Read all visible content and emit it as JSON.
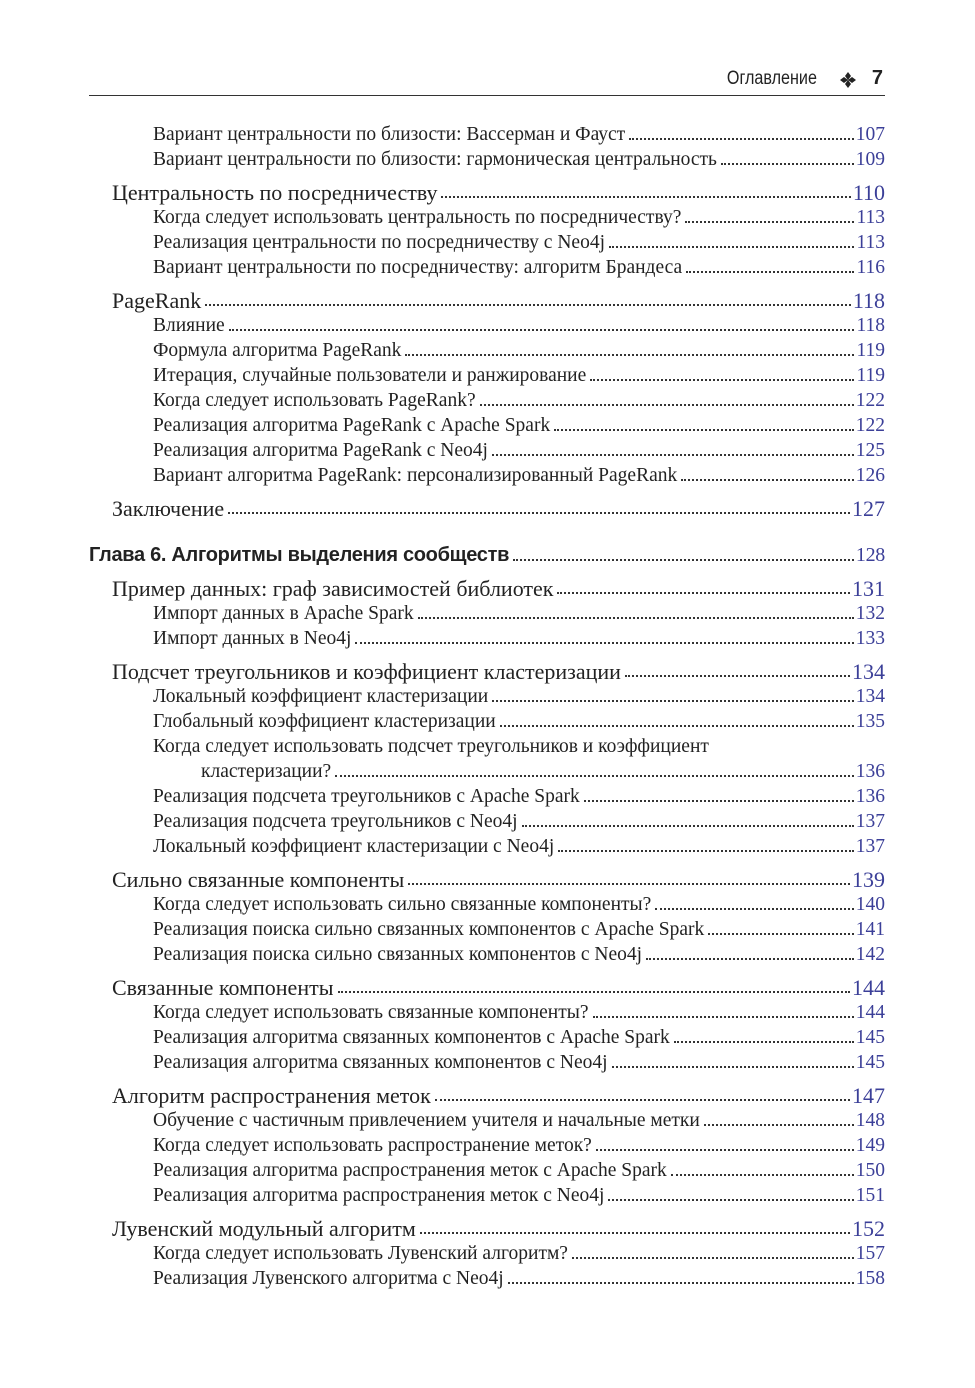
{
  "header": {
    "title": "Оглавление",
    "page_number": 7
  },
  "entries": [
    {
      "level": "sub",
      "text": "Вариант центральности по близости: Вассерман и Фауст",
      "page": 107
    },
    {
      "level": "sub",
      "text": "Вариант центральности по близости: гармоническая центральность",
      "page": 109
    },
    {
      "level": "section",
      "text": "Центральность по посредничеству",
      "page": 110
    },
    {
      "level": "sub",
      "text": "Когда следует использовать центральность по посредничеству?",
      "page": 113
    },
    {
      "level": "sub",
      "text": "Реализация центральности по посредничеству с Neo4j",
      "page": 113
    },
    {
      "level": "sub",
      "text": "Вариант центральности по посредничеству: алгоритм Брандеса",
      "page": 116
    },
    {
      "level": "section",
      "text": "PageRank",
      "page": 118
    },
    {
      "level": "sub",
      "text": "Влияние",
      "page": 118
    },
    {
      "level": "sub",
      "text": "Формула алгоритма PageRank",
      "page": 119
    },
    {
      "level": "sub",
      "text": "Итерация, случайные пользователи и ранжирование",
      "page": 119
    },
    {
      "level": "sub",
      "text": "Когда следует использовать PageRank?",
      "page": 122
    },
    {
      "level": "sub",
      "text": "Реализация алгоритма PageRank с Apache Spark",
      "page": 122
    },
    {
      "level": "sub",
      "text": "Реализация алгоритма PageRank с Neo4j",
      "page": 125
    },
    {
      "level": "sub",
      "text": "Вариант алгоритма PageRank: персонализированный PageRank",
      "page": 126
    },
    {
      "level": "section",
      "text": "Заключение",
      "page": 127
    },
    {
      "level": "chapter",
      "text": "Глава 6. Алгоритмы выделения сообществ",
      "page": 128
    },
    {
      "level": "section",
      "text": "Пример данных: граф зависимостей библиотек",
      "page": 131
    },
    {
      "level": "sub",
      "text": "Импорт данных в Apache Spark",
      "page": 132
    },
    {
      "level": "sub",
      "text": "Импорт данных в Neo4j",
      "page": 133
    },
    {
      "level": "section",
      "text": "Подсчет треугольников и коэффициент кластеризации",
      "page": 134
    },
    {
      "level": "sub",
      "text": "Локальный коэффициент кластеризации",
      "page": 134
    },
    {
      "level": "sub",
      "text": "Глобальный коэффициент кластеризации",
      "page": 135
    },
    {
      "level": "sub",
      "lines": [
        "Когда следует использовать подсчет треугольников и коэффициент",
        "кластеризации?"
      ],
      "page": 136
    },
    {
      "level": "sub",
      "text": "Реализация подсчета треугольников с Apache Spark",
      "page": 136
    },
    {
      "level": "sub",
      "text": "Реализация подсчета треугольников с Neo4j",
      "page": 137
    },
    {
      "level": "sub",
      "text": "Локальный коэффициент кластеризации с Neo4j",
      "page": 137
    },
    {
      "level": "section",
      "text": "Сильно связанные компоненты",
      "page": 139
    },
    {
      "level": "sub",
      "text": "Когда следует использовать сильно связанные компоненты?",
      "page": 140
    },
    {
      "level": "sub",
      "text": "Реализация поиска сильно связанных компонентов с Apache Spark",
      "page": 141
    },
    {
      "level": "sub",
      "text": "Реализация поиска сильно связанных компонентов с Neo4j",
      "page": 142
    },
    {
      "level": "section",
      "text": "Связанные компоненты",
      "page": 144
    },
    {
      "level": "sub",
      "text": "Когда следует использовать связанные компоненты?",
      "page": 144
    },
    {
      "level": "sub",
      "text": "Реализация алгоритма связанных компонентов с Apache Spark",
      "page": 145
    },
    {
      "level": "sub",
      "text": "Реализация алгоритма связанных компонентов с Neo4j",
      "page": 145
    },
    {
      "level": "section",
      "text": "Алгоритм распространения меток",
      "page": 147
    },
    {
      "level": "sub",
      "text": "Обучение с частичным привлечением учителя и начальные метки",
      "page": 148
    },
    {
      "level": "sub",
      "text": "Когда следует использовать распространение меток?",
      "page": 149
    },
    {
      "level": "sub",
      "text": "Реализация алгоритма распространения меток с Apache Spark",
      "page": 150
    },
    {
      "level": "sub",
      "text": "Реализация алгоритма распространения меток с Neo4j",
      "page": 151
    },
    {
      "level": "section",
      "text": "Лувенский модульный алгоритм",
      "page": 152
    },
    {
      "level": "sub",
      "text": "Когда следует использовать Лувенский алгоритм?",
      "page": 157
    },
    {
      "level": "sub",
      "text": "Реализация Лувенского алгоритма с Neo4j",
      "page": 158
    }
  ]
}
